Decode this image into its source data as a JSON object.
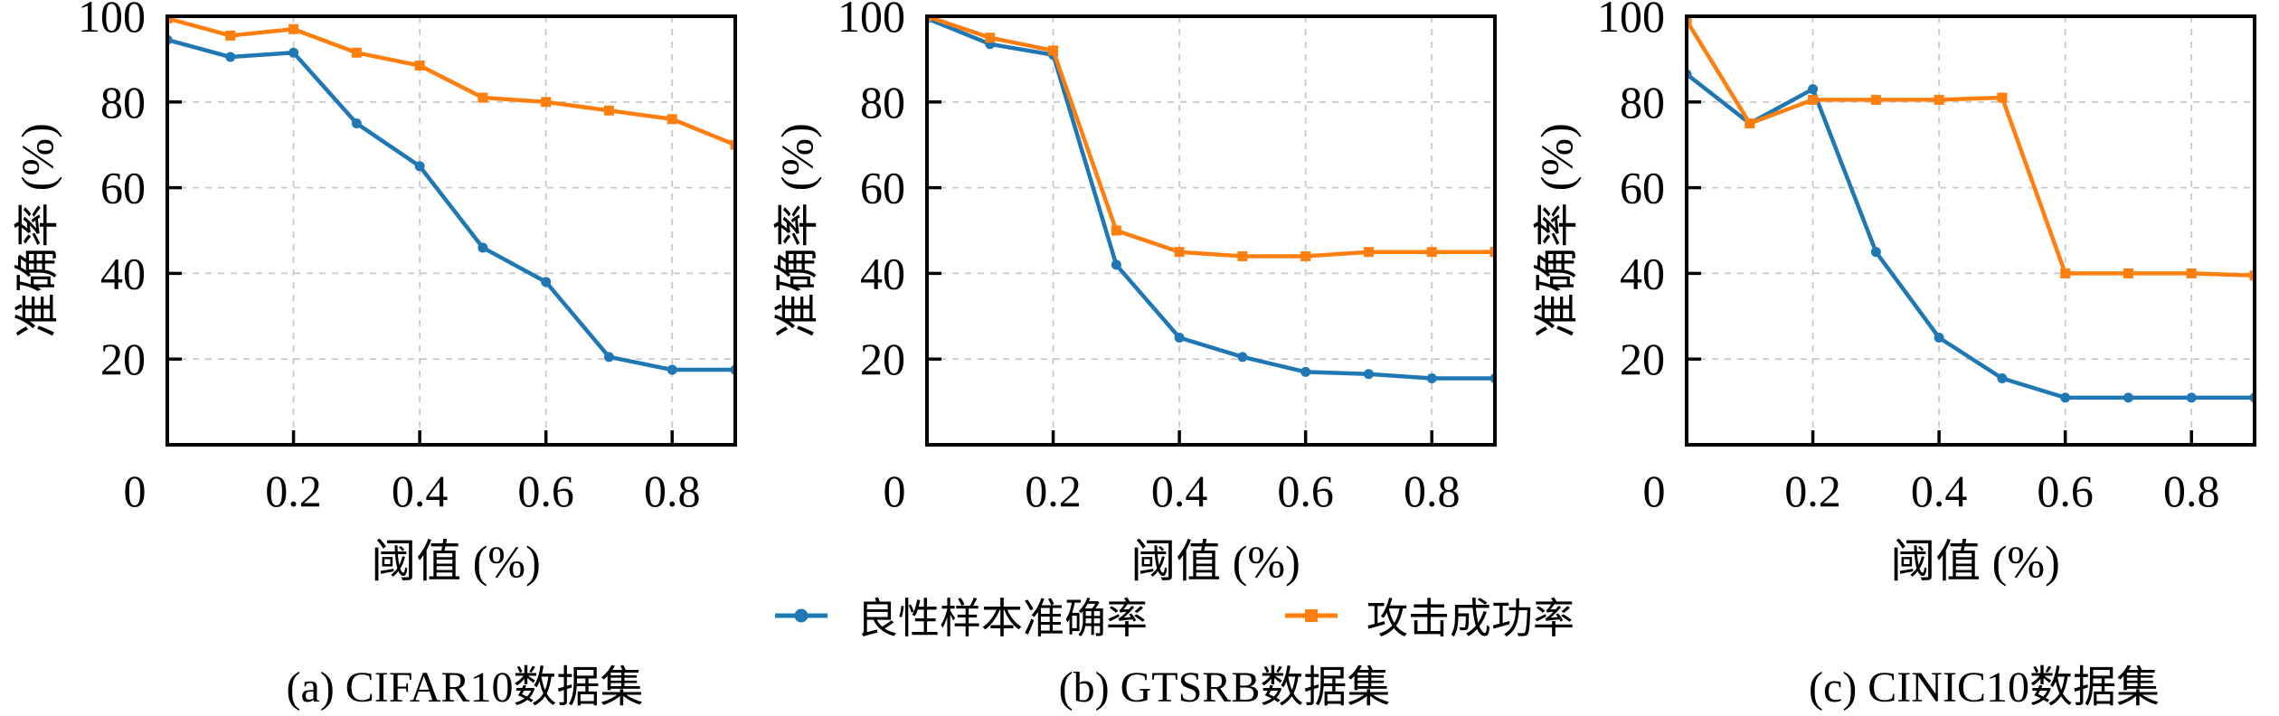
{
  "figure": {
    "background": "#ffffff",
    "axis_color": "#000000",
    "grid_color": "#c9c9c9",
    "series_colors": {
      "benign": "#1f77b4",
      "attack": "#ff7f0e"
    }
  },
  "axes": {
    "xlabel": "阈值 (%)",
    "ylabel": "准确率 (%)",
    "xlim": [
      0,
      0.9
    ],
    "ylim": [
      0,
      100
    ],
    "x_ticks": [
      0,
      0.2,
      0.4,
      0.6,
      0.8
    ],
    "x_tick_labels": [
      "0",
      "0.2",
      "0.4",
      "0.6",
      "0.8"
    ],
    "y_ticks": [
      20,
      40,
      60,
      80,
      100
    ],
    "y_tick_labels": [
      "20",
      "40",
      "60",
      "80",
      "100"
    ],
    "grid": "dashed",
    "tick_direction": "in"
  },
  "legend": {
    "position": "below-center",
    "items": [
      {
        "label": "良性样本准确率",
        "marker": "circle",
        "color": "#1f77b4"
      },
      {
        "label": "攻击成功率",
        "marker": "square",
        "color": "#ff7f0e"
      }
    ]
  },
  "chart_data": [
    {
      "type": "line",
      "caption": "(a) CIFAR10数据集",
      "xlabel": "阈值 (%)",
      "ylabel": "准确率 (%)",
      "xlim": [
        0,
        0.9
      ],
      "ylim": [
        0,
        100
      ],
      "x": [
        0,
        0.1,
        0.2,
        0.3,
        0.4,
        0.5,
        0.6,
        0.7,
        0.8,
        0.9
      ],
      "series": [
        {
          "name": "良性样本准确率",
          "values": [
            94.5,
            90.5,
            91.5,
            75,
            65,
            46,
            38,
            20.5,
            17.5,
            17.5
          ]
        },
        {
          "name": "攻击成功率",
          "values": [
            99.5,
            95.5,
            97,
            91.5,
            88.5,
            81,
            80,
            78,
            76,
            70
          ]
        }
      ]
    },
    {
      "type": "line",
      "caption": "(b) GTSRB数据集",
      "xlabel": "阈值 (%)",
      "ylabel": "准确率 (%)",
      "xlim": [
        0,
        0.9
      ],
      "ylim": [
        0,
        100
      ],
      "x": [
        0,
        0.1,
        0.2,
        0.3,
        0.4,
        0.5,
        0.6,
        0.7,
        0.8,
        0.9
      ],
      "series": [
        {
          "name": "良性样本准确率",
          "values": [
            99.5,
            93.5,
            91,
            42,
            25,
            20.5,
            17,
            16.5,
            15.5,
            15.5
          ]
        },
        {
          "name": "攻击成功率",
          "values": [
            100,
            95,
            92,
            50,
            45,
            44,
            44,
            45,
            45,
            45
          ]
        }
      ]
    },
    {
      "type": "line",
      "caption": "(c) CINIC10数据集",
      "xlabel": "阈值 (%)",
      "ylabel": "准确率 (%)",
      "xlim": [
        0,
        0.9
      ],
      "ylim": [
        0,
        100
      ],
      "x": [
        0,
        0.1,
        0.2,
        0.3,
        0.4,
        0.5,
        0.6,
        0.7,
        0.8,
        0.9
      ],
      "series": [
        {
          "name": "良性样本准确率",
          "values": [
            86.5,
            75,
            83,
            45,
            25,
            15.5,
            11,
            11,
            11,
            11
          ]
        },
        {
          "name": "攻击成功率",
          "values": [
            99,
            75,
            80.5,
            80.5,
            80.5,
            81,
            40,
            40,
            40,
            39.5
          ]
        }
      ]
    }
  ]
}
